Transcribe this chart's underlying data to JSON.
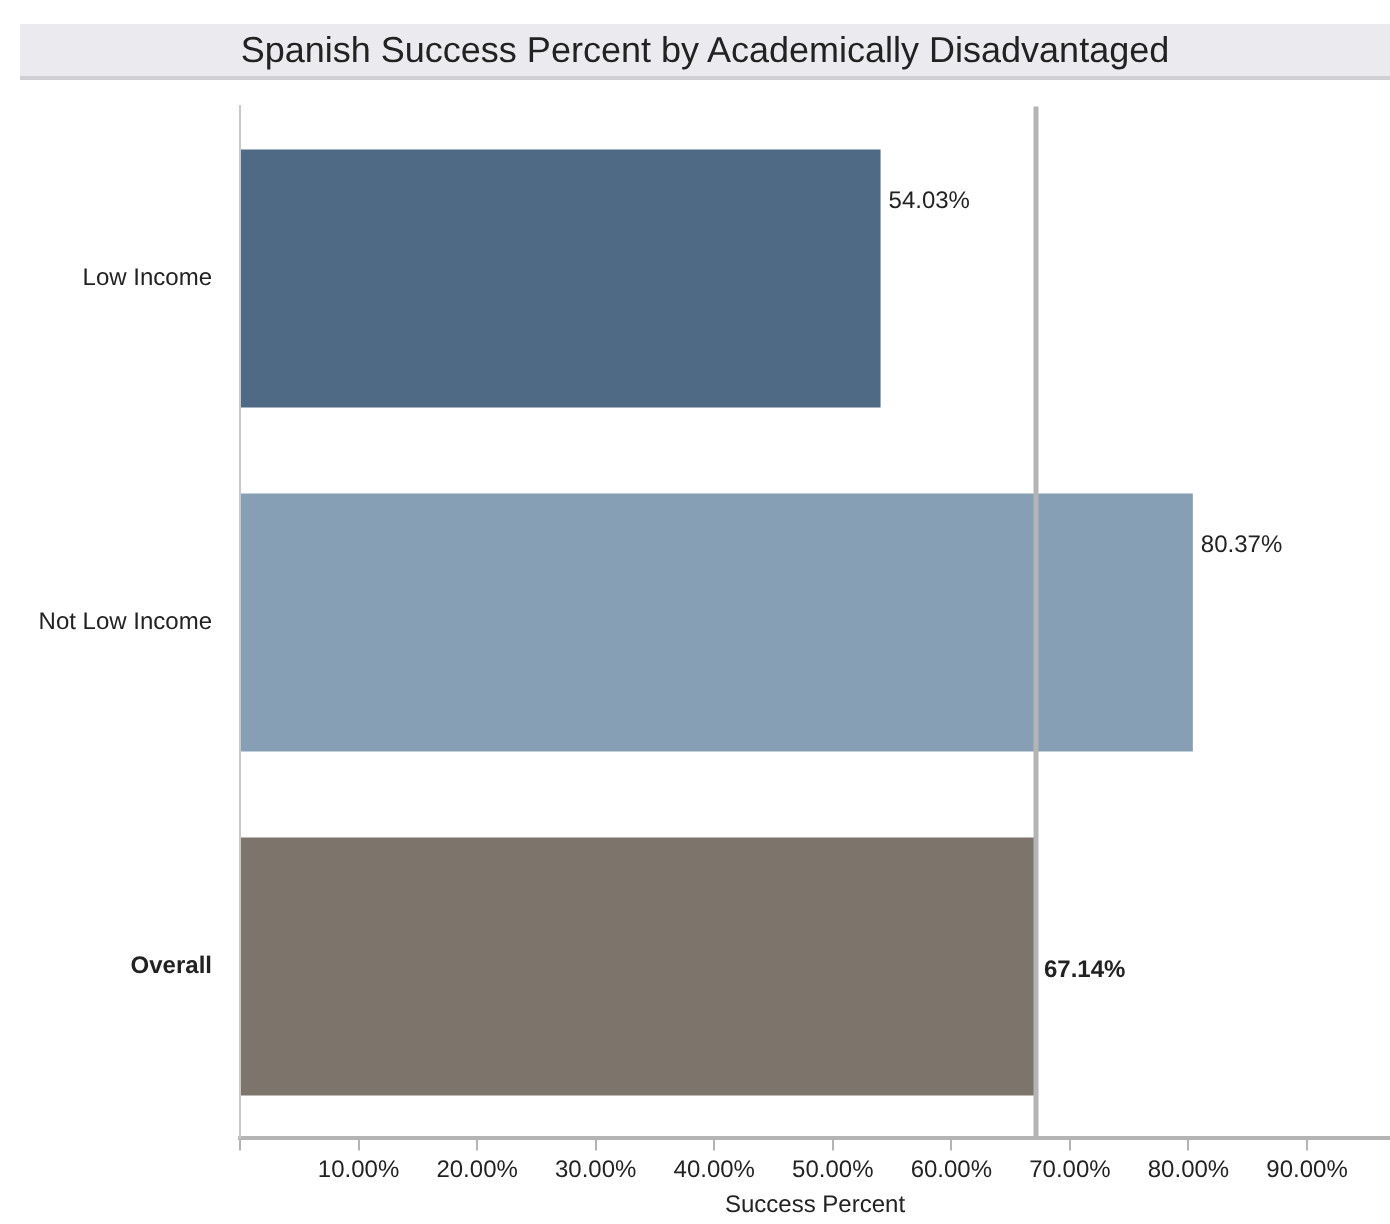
{
  "chart_data": {
    "type": "bar",
    "orientation": "horizontal",
    "title": "Spanish Success Percent by Academically Disadvantaged",
    "xlabel": "Success Percent",
    "categories": [
      "Low Income",
      "Not Low Income",
      "Overall"
    ],
    "values": [
      54.03,
      80.37,
      67.14
    ],
    "colors": [
      "#4e6a84",
      "#879fb4",
      "#7d756c"
    ],
    "value_labels": [
      "54.03%",
      "80.37%",
      "67.14%"
    ],
    "xlim": [
      0,
      97
    ],
    "xticks": [
      {
        "value": 0,
        "label": null
      },
      {
        "value": 10,
        "label": "10.00%"
      },
      {
        "value": 20,
        "label": "20.00%"
      },
      {
        "value": 30,
        "label": "30.00%"
      },
      {
        "value": 40,
        "label": "40.00%"
      },
      {
        "value": 50,
        "label": "50.00%"
      },
      {
        "value": 60,
        "label": "60.00%"
      },
      {
        "value": 70,
        "label": "70.00%"
      },
      {
        "value": 80,
        "label": "80.00%"
      },
      {
        "value": 90,
        "label": "90.00%"
      }
    ],
    "ref_lines": [
      {
        "axis": "x",
        "value": 67.14,
        "label": null,
        "color": "#b4b4b4"
      }
    ],
    "grid": false,
    "legend": false
  }
}
